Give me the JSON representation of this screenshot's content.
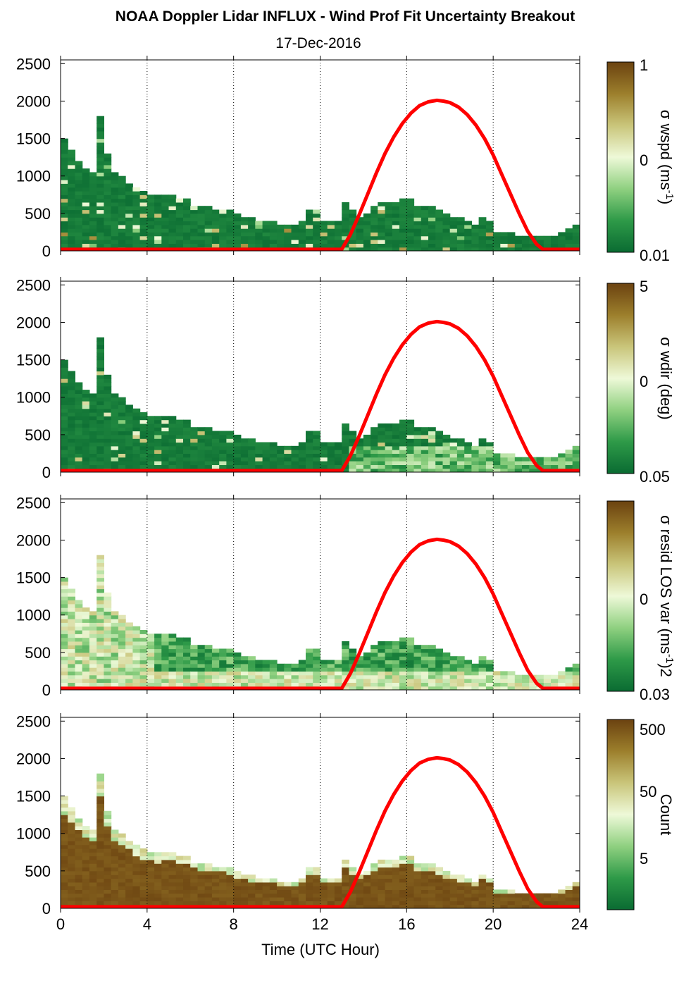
{
  "figure": {
    "title": "NOAA Doppler Lidar INFLUX - Wind Prof Fit Uncertainty Breakout",
    "subtitle": "17-Dec-2016",
    "xlabel": "Time (UTC Hour)"
  },
  "colors": {
    "colormap": [
      "#0a6b32",
      "#2e9a48",
      "#8fd080",
      "#eef9d8",
      "#c9c57a",
      "#9c7f2c",
      "#6b4210"
    ],
    "sun_curve": "#ff0000",
    "grid": "#000000"
  },
  "chart_data": [
    {
      "type": "heatmap",
      "panel": "wspd",
      "x_range": [
        0,
        24
      ],
      "y_range": [
        0,
        2550
      ],
      "xticks": [
        "0",
        "4",
        "8",
        "12",
        "16",
        "20",
        "24"
      ],
      "yticks": [
        "0",
        "500",
        "1000",
        "1500",
        "2000",
        "2500"
      ],
      "vertical_gridlines_hours": [
        4,
        8,
        12,
        16,
        20,
        24
      ],
      "colorbar": {
        "label_main": "σ wspd (ms",
        "label_sup": "-1",
        "label_end": ")",
        "ticks": [
          "1",
          "0",
          "0.01"
        ],
        "scale": "log"
      },
      "dominant_level": 0.08
    },
    {
      "type": "heatmap",
      "panel": "wdir",
      "x_range": [
        0,
        24
      ],
      "y_range": [
        0,
        2550
      ],
      "xticks": [
        "0",
        "4",
        "8",
        "12",
        "16",
        "20",
        "24"
      ],
      "yticks": [
        "0",
        "500",
        "1000",
        "1500",
        "2000",
        "2500"
      ],
      "vertical_gridlines_hours": [
        4,
        8,
        12,
        16,
        20,
        24
      ],
      "colorbar": {
        "label_main": "σ wdir (deg)",
        "label_sup": "",
        "label_end": "",
        "ticks": [
          "5",
          "0",
          "0.05"
        ],
        "scale": "log"
      },
      "dominant_level": 0.1
    },
    {
      "type": "heatmap",
      "panel": "resid",
      "x_range": [
        0,
        24
      ],
      "y_range": [
        0,
        2550
      ],
      "xticks": [
        "0",
        "4",
        "8",
        "12",
        "16",
        "20",
        "24"
      ],
      "yticks": [
        "0",
        "500",
        "1000",
        "1500",
        "2000",
        "2500"
      ],
      "vertical_gridlines_hours": [
        4,
        8,
        12,
        16,
        20,
        24
      ],
      "colorbar": {
        "label_main": "σ resid LOS var (ms",
        "label_sup": "-1",
        "label_end": ")2",
        "ticks": [
          "0",
          "0.03"
        ],
        "scale": "log"
      },
      "dominant_level": 0.3
    },
    {
      "type": "heatmap",
      "panel": "count",
      "x_range": [
        0,
        24
      ],
      "y_range": [
        0,
        2550
      ],
      "xticks": [
        "0",
        "4",
        "8",
        "12",
        "16",
        "20",
        "24"
      ],
      "yticks": [
        "0",
        "500",
        "1000",
        "1500",
        "2000",
        "2500"
      ],
      "vertical_gridlines_hours": [
        4,
        8,
        12,
        16,
        20,
        24
      ],
      "colorbar": {
        "label_main": "Count",
        "label_sup": "",
        "label_end": "",
        "ticks": [
          "500",
          "50",
          "5"
        ],
        "scale": "log"
      },
      "dominant_level": 0.95
    }
  ],
  "echo_top_profile": {
    "hours": [
      0,
      0.67,
      1,
      1.33,
      1.67,
      1.8,
      2.2,
      2.5,
      3,
      3.33,
      3.67,
      4,
      4.5,
      5,
      5.67,
      6,
      6.33,
      7,
      7.33,
      7.67,
      8,
      8.5,
      9,
      9.5,
      10,
      10.5,
      11,
      11.67,
      12,
      12.5,
      13,
      13.2,
      13.67,
      14,
      14.5,
      15,
      15.5,
      16,
      16.5,
      17,
      17.5,
      18,
      18.5,
      19,
      19.33,
      19.67,
      20,
      21,
      22,
      23,
      23.5,
      23.8
    ],
    "top_m": [
      1530,
      1250,
      1120,
      1050,
      1020,
      1800,
      1200,
      1000,
      950,
      850,
      780,
      720,
      700,
      720,
      680,
      620,
      560,
      560,
      520,
      560,
      480,
      420,
      400,
      380,
      340,
      300,
      320,
      600,
      400,
      380,
      350,
      700,
      400,
      450,
      560,
      650,
      600,
      700,
      560,
      600,
      500,
      450,
      400,
      350,
      300,
      550,
      220,
      200,
      180,
      200,
      260,
      320
    ]
  },
  "sun_elevation_curve": {
    "hours": [
      0,
      13.0,
      13.4,
      13.8,
      14.2,
      14.6,
      15.0,
      15.4,
      15.8,
      16.2,
      16.6,
      17.0,
      17.4,
      17.7,
      18.0,
      18.4,
      18.8,
      19.2,
      19.6,
      20.0,
      20.4,
      20.8,
      21.2,
      21.6,
      22.0,
      22.3,
      22.5,
      24
    ],
    "height_m": [
      20,
      20,
      220,
      480,
      760,
      1040,
      1300,
      1520,
      1700,
      1840,
      1940,
      1990,
      2010,
      2000,
      1980,
      1920,
      1820,
      1680,
      1500,
      1280,
      1020,
      760,
      500,
      260,
      90,
      20,
      20,
      20
    ]
  }
}
